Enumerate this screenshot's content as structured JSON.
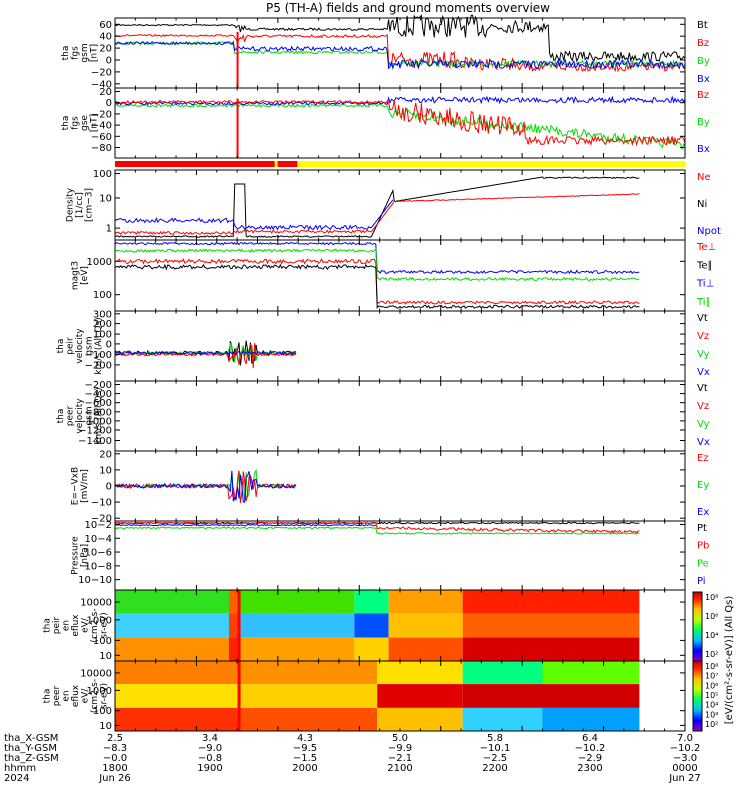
{
  "title": "P5 (TH-A) fields and ground moments overview",
  "colors": {
    "black": "#000000",
    "red": "#ff0000",
    "green": "#00dd00",
    "blue": "#0000ff",
    "bar_red": "#ff0000",
    "bar_yellow": "#ffff00"
  },
  "chart_data": [
    {
      "id": "fgs_mag",
      "type": "line",
      "ylabel": "tha fgs gsm [nT]",
      "yticks": [
        "60",
        "40",
        "20",
        "0",
        "−20",
        "−40"
      ],
      "ylim": [
        -40,
        70
      ],
      "series": [
        {
          "name": "Bt",
          "color": "black"
        },
        {
          "name": "Bz",
          "color": "red"
        },
        {
          "name": "By",
          "color": "green"
        },
        {
          "name": "Bx",
          "color": "blue"
        }
      ]
    },
    {
      "id": "fgs_gse",
      "type": "line",
      "ylabel": "tha fgs gse [nT]",
      "yticks": [
        "20",
        "0",
        "−20",
        "−40",
        "−60",
        "−80"
      ],
      "ylim": [
        -85,
        25
      ],
      "series": [
        {
          "name": "Bz",
          "color": "red"
        },
        {
          "name": "By",
          "color": "green"
        },
        {
          "name": "Bx",
          "color": "blue"
        }
      ]
    },
    {
      "id": "density",
      "type": "line",
      "ylabel": "Density [1/cc] [cm−3]",
      "yticks": [
        "100",
        "10",
        "1"
      ],
      "log": true,
      "series": [
        {
          "name": "Ne",
          "color": "red"
        },
        {
          "name": "Ni",
          "color": "black"
        },
        {
          "name": "Npot",
          "color": "blue"
        }
      ]
    },
    {
      "id": "temp",
      "type": "line",
      "ylabel": "magt3 [eV]",
      "yticks": [
        "1000",
        "100"
      ],
      "log": true,
      "series": [
        {
          "name": "Te⊥",
          "color": "red"
        },
        {
          "name": "Te∥",
          "color": "black"
        },
        {
          "name": "Ti⊥",
          "color": "blue"
        },
        {
          "name": "Ti∥",
          "color": "green"
        }
      ]
    },
    {
      "id": "peir_vel",
      "type": "line",
      "ylabel": "tha peir velocity gsm km/s (All Qs)",
      "yticks": [
        "300",
        "200",
        "100",
        "0",
        "−100",
        "−200"
      ],
      "ylim": [
        -200,
        300
      ],
      "series": [
        {
          "name": "Vt",
          "color": "black"
        },
        {
          "name": "Vz",
          "color": "red"
        },
        {
          "name": "Vy",
          "color": "green"
        },
        {
          "name": "Vx",
          "color": "blue"
        }
      ]
    },
    {
      "id": "peer_vel",
      "type": "line",
      "ylabel": "tha peer velocity gsm km/s (All Qs)",
      "yticks": [
        "−200",
        "−400",
        "−600",
        "−800",
        "−1000",
        "−1200",
        "−1400"
      ],
      "series": [
        {
          "name": "Vt",
          "color": "black"
        },
        {
          "name": "Vz",
          "color": "red"
        },
        {
          "name": "Vy",
          "color": "green"
        },
        {
          "name": "Vx",
          "color": "blue"
        }
      ]
    },
    {
      "id": "efield",
      "type": "line",
      "ylabel": "E=−VxB [mV/m]",
      "yticks": [
        "20",
        "10",
        "0",
        "−10",
        "−20"
      ],
      "ylim": [
        -20,
        20
      ],
      "series": [
        {
          "name": "Ez",
          "color": "red"
        },
        {
          "name": "Ey",
          "color": "green"
        },
        {
          "name": "Ex",
          "color": "blue"
        }
      ]
    },
    {
      "id": "pressure",
      "type": "line",
      "ylabel": "Pressure [nPa]",
      "yticks": [
        "10−2",
        "10−4",
        "10−6",
        "10−8",
        "10−10"
      ],
      "log": true,
      "series": [
        {
          "name": "Pt",
          "color": "black"
        },
        {
          "name": "Pb",
          "color": "red"
        },
        {
          "name": "Pe",
          "color": "green"
        },
        {
          "name": "Pi",
          "color": "blue"
        }
      ]
    },
    {
      "id": "peir_spec",
      "type": "heatmap",
      "ylabel": "tha peir en eflux eV/(cm2-s-sr-eV)",
      "yticks": [
        "10000",
        "1000",
        "100",
        "10"
      ]
    },
    {
      "id": "peer_spec",
      "type": "heatmap",
      "ylabel": "tha peer en eflux eV/(cm2-s-sr-eV)",
      "yticks": [
        "10000",
        "1000",
        "100",
        "10"
      ]
    }
  ],
  "colorbar": {
    "label": "[eV/(cm²-s-sr-eV)] (All Qs)",
    "ticks_top": [
      "10⁸",
      "10⁶",
      "10⁴",
      "10²"
    ],
    "ticks_bottom": [
      "10⁸",
      "10⁷",
      "10⁶",
      "10⁵",
      "10⁴",
      "10³",
      "10²"
    ]
  },
  "x_axis": {
    "row_labels": [
      "tha_X-GSM",
      "tha_Y-GSM",
      "tha_Z-GSM",
      "hhmm",
      "2024"
    ],
    "columns": [
      {
        "x": "2.5",
        "y": "−8.3",
        "z": "−0.0",
        "t": "1800",
        "d": "Jun 26"
      },
      {
        "x": "3.4",
        "y": "−9.0",
        "z": "−0.8",
        "t": "1900",
        "d": ""
      },
      {
        "x": "4.3",
        "y": "−9.5",
        "z": "−1.5",
        "t": "2000",
        "d": ""
      },
      {
        "x": "5.0",
        "y": "−9.9",
        "z": "−2.1",
        "t": "2100",
        "d": ""
      },
      {
        "x": "5.8",
        "y": "−10.1",
        "z": "−2.5",
        "t": "2200",
        "d": ""
      },
      {
        "x": "6.4",
        "y": "−10.2",
        "z": "−2.9",
        "t": "2300",
        "d": ""
      },
      {
        "x": "7.0",
        "y": "−10.2",
        "z": "−3.0",
        "t": "0000",
        "d": "Jun 27"
      }
    ]
  }
}
